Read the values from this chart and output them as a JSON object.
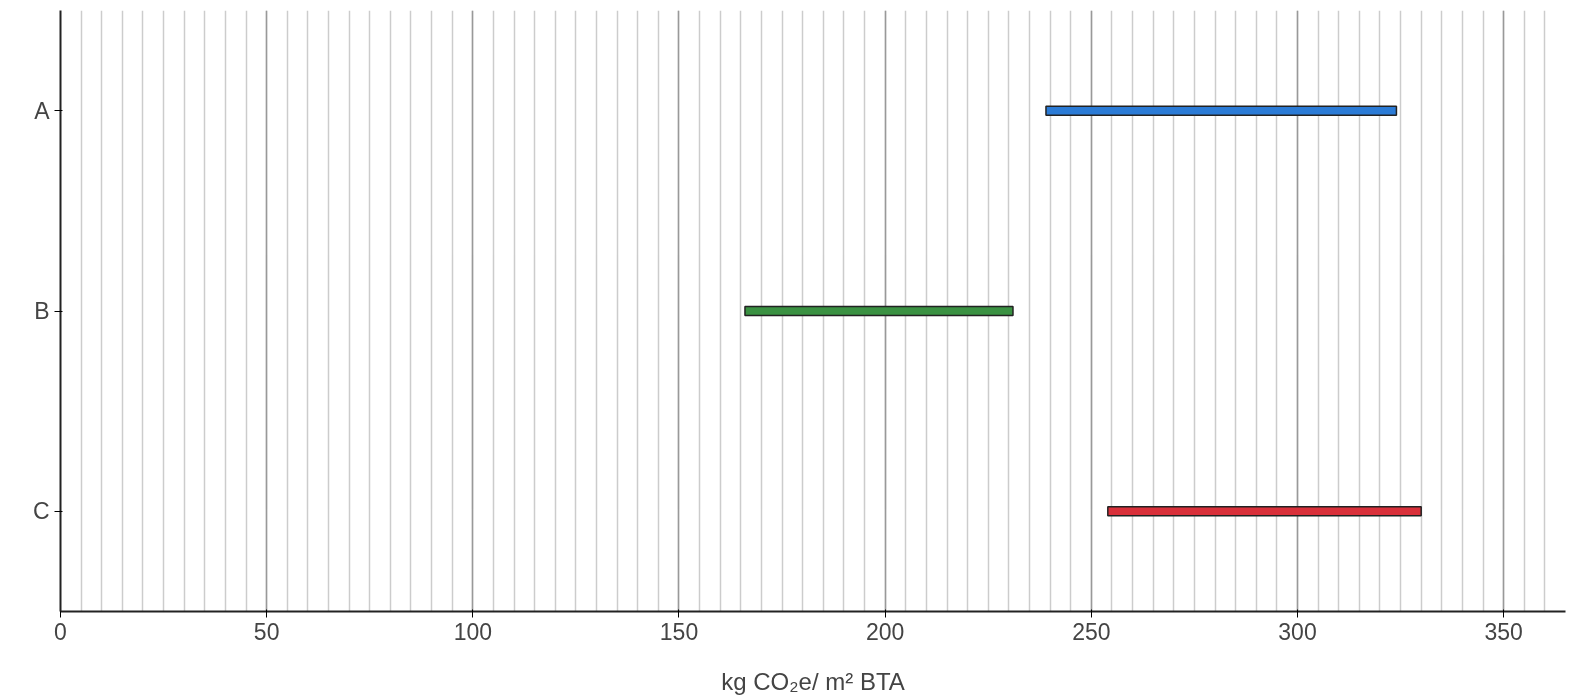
{
  "chart_data": {
    "type": "bar",
    "orientation": "horizontal",
    "categories": [
      "A",
      "B",
      "C"
    ],
    "base": [
      239,
      166,
      254
    ],
    "values": [
      85,
      65,
      76
    ],
    "colors": [
      "#2b7bd6",
      "#3a9142",
      "#d9303a"
    ],
    "xlim": [
      0,
      365
    ],
    "xticks": [
      0,
      50,
      100,
      150,
      200,
      250,
      300,
      350
    ],
    "xlabel": "kg CO₂e/ m² BTA",
    "grid": "x"
  }
}
